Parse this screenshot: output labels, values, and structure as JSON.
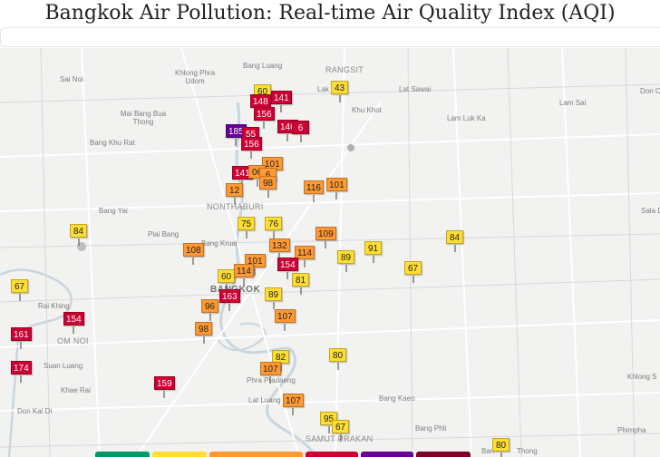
{
  "page": {
    "title": "Bangkok Air Pollution: Real-time Air Quality Index (AQI)"
  },
  "colors": {
    "good": "#009966",
    "moderate": "#ffde33",
    "sensitive": "#ff9933",
    "unhealthy": "#cc0033",
    "very_unhealthy": "#660099",
    "hazardous": "#7e0023",
    "map_bg": "#f2f2f0",
    "river": "#c9d6df"
  },
  "places": [
    {
      "id": "sai-noi",
      "label": "Sai Noi"
    },
    {
      "id": "khlong-phra-udom",
      "label": "Khlong Phra Udom"
    },
    {
      "id": "bang-luang",
      "label": "Bang Luang"
    },
    {
      "id": "rangsit",
      "label": "RANGSIT"
    },
    {
      "id": "lak-hok",
      "label": "Lak"
    },
    {
      "id": "lat-sawai",
      "label": "Lat Sawai"
    },
    {
      "id": "don-c",
      "label": "Don C"
    },
    {
      "id": "mai-bang-bua-thong",
      "label": "Mai Bang Bua Thong"
    },
    {
      "id": "bang-khu-rat",
      "label": "Bang Khu Rat"
    },
    {
      "id": "khu-khot",
      "label": "Khu Khot"
    },
    {
      "id": "lam-sai",
      "label": "Lam Sai"
    },
    {
      "id": "lam-luk-ka",
      "label": "Lam Luk Ka"
    },
    {
      "id": "nonthaburi",
      "label": "NONTHABURI"
    },
    {
      "id": "bang-yai",
      "label": "Bang Yai"
    },
    {
      "id": "sala-d",
      "label": "Sala D"
    },
    {
      "id": "plai-bang",
      "label": "Plai Bang"
    },
    {
      "id": "bang-kruai",
      "label": "Bang Kruai"
    },
    {
      "id": "bangkok",
      "label": "BANGKOK"
    },
    {
      "id": "rai-khing",
      "label": "Rai Khing"
    },
    {
      "id": "om-noi",
      "label": "OM NOI"
    },
    {
      "id": "suan-luang",
      "label": "Suan Luang"
    },
    {
      "id": "khae-rai",
      "label": "Khae Rai"
    },
    {
      "id": "phra-pradaeng",
      "label": "Phra Pradaeng"
    },
    {
      "id": "lat-luang",
      "label": "Lat Luang"
    },
    {
      "id": "bang-kaeo",
      "label": "Bang Kaeo"
    },
    {
      "id": "khlong-suan",
      "label": "Khlong S"
    },
    {
      "id": "don-kai-di",
      "label": "Don Kai Di"
    },
    {
      "id": "bang-phli",
      "label": "Bang Phli"
    },
    {
      "id": "phimpha",
      "label": "Phimpha"
    },
    {
      "id": "samut-prakan",
      "label": "SAMUT PRAKAN"
    },
    {
      "id": "bang-bo-thong",
      "label": "Thong"
    },
    {
      "id": "ban",
      "label": "Ban"
    }
  ],
  "markers": [
    {
      "id": "m1",
      "value": "60",
      "level": "moderate"
    },
    {
      "id": "m2",
      "value": "148",
      "level": "unhealthy"
    },
    {
      "id": "m3",
      "value": "141",
      "level": "unhealthy"
    },
    {
      "id": "m4",
      "value": "43",
      "level": "moderate"
    },
    {
      "id": "m5",
      "value": "156",
      "level": "unhealthy"
    },
    {
      "id": "m6",
      "value": "185",
      "level": "very_unhealthy"
    },
    {
      "id": "m7",
      "value": "55",
      "level": "unhealthy"
    },
    {
      "id": "m8",
      "value": "146",
      "level": "unhealthy"
    },
    {
      "id": "m9",
      "value": "6",
      "level": "unhealthy"
    },
    {
      "id": "m10",
      "value": "156",
      "level": "unhealthy"
    },
    {
      "id": "m11",
      "value": "101",
      "level": "sensitive"
    },
    {
      "id": "m12",
      "value": "141",
      "level": "unhealthy"
    },
    {
      "id": "m13",
      "value": "06",
      "level": "sensitive"
    },
    {
      "id": "m14",
      "value": "6",
      "level": "sensitive"
    },
    {
      "id": "m15",
      "value": "12",
      "level": "sensitive"
    },
    {
      "id": "m16",
      "value": "98",
      "level": "sensitive"
    },
    {
      "id": "m17",
      "value": "116",
      "level": "sensitive"
    },
    {
      "id": "m18",
      "value": "101",
      "level": "sensitive"
    },
    {
      "id": "m19",
      "value": "75",
      "level": "moderate"
    },
    {
      "id": "m20",
      "value": "76",
      "level": "moderate"
    },
    {
      "id": "m21",
      "value": "109",
      "level": "sensitive"
    },
    {
      "id": "m22",
      "value": "84",
      "level": "moderate"
    },
    {
      "id": "m23",
      "value": "84",
      "level": "moderate"
    },
    {
      "id": "m24",
      "value": "108",
      "level": "sensitive"
    },
    {
      "id": "m25",
      "value": "132",
      "level": "sensitive"
    },
    {
      "id": "m26",
      "value": "114",
      "level": "sensitive"
    },
    {
      "id": "m27",
      "value": "91",
      "level": "moderate"
    },
    {
      "id": "m28",
      "value": "101",
      "level": "sensitive"
    },
    {
      "id": "m29",
      "value": "154",
      "level": "unhealthy"
    },
    {
      "id": "m30",
      "value": "89",
      "level": "moderate"
    },
    {
      "id": "m31",
      "value": "67",
      "level": "moderate"
    },
    {
      "id": "m32",
      "value": "60",
      "level": "moderate"
    },
    {
      "id": "m33",
      "value": "114",
      "level": "sensitive"
    },
    {
      "id": "m34",
      "value": "81",
      "level": "moderate"
    },
    {
      "id": "m35",
      "value": "67",
      "level": "moderate"
    },
    {
      "id": "m36",
      "value": "163",
      "level": "unhealthy"
    },
    {
      "id": "m37",
      "value": "89",
      "level": "moderate"
    },
    {
      "id": "m38",
      "value": "96",
      "level": "sensitive"
    },
    {
      "id": "m39",
      "value": "154",
      "level": "unhealthy"
    },
    {
      "id": "m40",
      "value": "107",
      "level": "sensitive"
    },
    {
      "id": "m41",
      "value": "161",
      "level": "unhealthy"
    },
    {
      "id": "m42",
      "value": "98",
      "level": "sensitive"
    },
    {
      "id": "m43",
      "value": "82",
      "level": "moderate"
    },
    {
      "id": "m44",
      "value": "80",
      "level": "moderate"
    },
    {
      "id": "m45",
      "value": "174",
      "level": "unhealthy"
    },
    {
      "id": "m46",
      "value": "107",
      "level": "sensitive"
    },
    {
      "id": "m47",
      "value": "159",
      "level": "unhealthy"
    },
    {
      "id": "m48",
      "value": "107",
      "level": "sensitive"
    },
    {
      "id": "m49",
      "value": "95",
      "level": "moderate"
    },
    {
      "id": "m50",
      "value": "67",
      "level": "moderate"
    },
    {
      "id": "m51",
      "value": "80",
      "level": "moderate"
    }
  ],
  "legend": [
    {
      "id": "good",
      "color": "#009966"
    },
    {
      "id": "moderate",
      "color": "#ffde33"
    },
    {
      "id": "sensitive",
      "color": "#ff9933"
    },
    {
      "id": "unhealthy",
      "color": "#cc0033"
    },
    {
      "id": "very-unhealthy",
      "color": "#660099"
    },
    {
      "id": "hazardous",
      "color": "#7e0023"
    }
  ]
}
